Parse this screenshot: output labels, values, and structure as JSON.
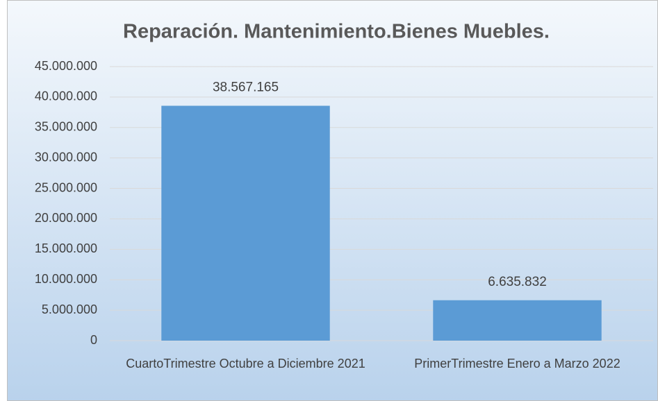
{
  "chart_data": {
    "type": "bar",
    "title": "Reparación. Mantenimiento.Bienes Muebles.",
    "categories": [
      "CuartoTrimestre Octubre a Diciembre 2021",
      "PrimerTrimestre Enero a Marzo 2022"
    ],
    "values": [
      38567165,
      6635832
    ],
    "value_labels": [
      "38.567.165",
      "6.635.832"
    ],
    "color": "#5b9bd5",
    "ylim": [
      0,
      45000000
    ],
    "yticks": [
      0,
      {
        "value": 5000000,
        "label": "5.000.000"
      },
      {
        "value": 10000000,
        "label": "10.000.000"
      },
      {
        "value": 15000000,
        "label": "15.000.000"
      },
      {
        "value": 20000000,
        "label": "20.000.000"
      },
      {
        "value": 25000000,
        "label": "25.000.000"
      },
      {
        "value": 30000000,
        "label": "30.000.000"
      },
      {
        "value": 35000000,
        "label": "35.000.000"
      },
      {
        "value": 40000000,
        "label": "40.000.000"
      },
      {
        "value": 45000000,
        "label": "45.000.000"
      }
    ],
    "grid": true
  }
}
